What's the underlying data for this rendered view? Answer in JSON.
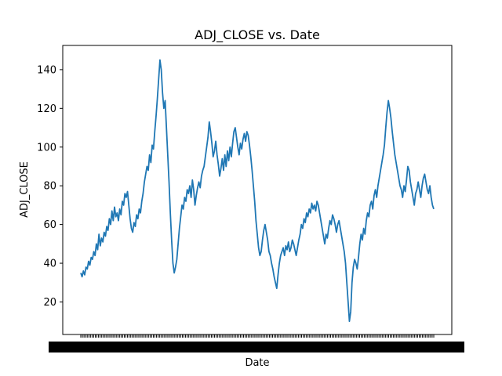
{
  "chart_data": {
    "type": "line",
    "title": "ADJ_CLOSE vs. Date",
    "xlabel": "Date",
    "ylabel": "ADJ_CLOSE",
    "ylim": [
      3.2,
      152.5
    ],
    "yticks": [
      20,
      40,
      60,
      80,
      100,
      120,
      140
    ],
    "grid": false,
    "line_color": "#1f77b4",
    "x_tick_labels_note": "dense overlapping date tick labels, illegible",
    "series": [
      {
        "values": [
          35,
          33,
          36,
          34,
          38,
          37,
          41,
          39,
          43,
          42,
          46,
          44,
          50,
          47,
          55,
          49,
          53,
          51,
          56,
          54,
          59,
          57,
          63,
          60,
          67,
          62,
          69,
          64,
          66,
          62,
          68,
          65,
          72,
          70,
          76,
          74,
          77,
          70,
          63,
          58,
          56,
          61,
          59,
          65,
          63,
          68,
          66,
          72,
          76,
          82,
          86,
          90,
          88,
          96,
          92,
          101,
          99,
          108,
          116,
          125,
          135,
          145,
          140,
          128,
          120,
          124,
          110,
          96,
          82,
          66,
          52,
          40,
          35,
          38,
          42,
          50,
          58,
          64,
          70,
          68,
          74,
          72,
          78,
          76,
          80,
          74,
          83,
          78,
          70,
          75,
          79,
          82,
          79,
          85,
          88,
          90,
          95,
          100,
          105,
          113,
          108,
          102,
          95,
          98,
          103,
          96,
          91,
          85,
          89,
          94,
          88,
          96,
          90,
          98,
          93,
          100,
          95,
          102,
          108,
          110,
          105,
          100,
          96,
          102,
          99,
          104,
          107,
          103,
          108,
          106,
          101,
          95,
          88,
          80,
          72,
          62,
          55,
          48,
          44,
          46,
          52,
          57,
          60,
          56,
          52,
          46,
          44,
          40,
          37,
          33,
          30,
          27,
          34,
          40,
          44,
          46,
          48,
          44,
          49,
          47,
          51,
          46,
          48,
          52,
          50,
          47,
          44,
          48,
          52,
          55,
          60,
          58,
          63,
          61,
          66,
          64,
          68,
          66,
          71,
          68,
          70,
          67,
          72,
          70,
          66,
          62,
          58,
          54,
          50,
          55,
          53,
          58,
          62,
          60,
          65,
          63,
          60,
          56,
          60,
          62,
          58,
          54,
          50,
          46,
          40,
          30,
          20,
          10,
          15,
          30,
          38,
          42,
          40,
          37,
          43,
          50,
          55,
          52,
          58,
          55,
          62,
          66,
          64,
          70,
          72,
          68,
          75,
          78,
          74,
          80,
          84,
          88,
          92,
          96,
          101,
          110,
          118,
          124,
          120,
          115,
          108,
          102,
          96,
          92,
          88,
          84,
          80,
          78,
          74,
          80,
          77,
          83,
          90,
          88,
          82,
          78,
          74,
          70,
          76,
          78,
          82,
          78,
          74,
          80,
          84,
          86,
          82,
          78,
          76,
          80,
          74,
          70,
          68
        ]
      }
    ]
  }
}
